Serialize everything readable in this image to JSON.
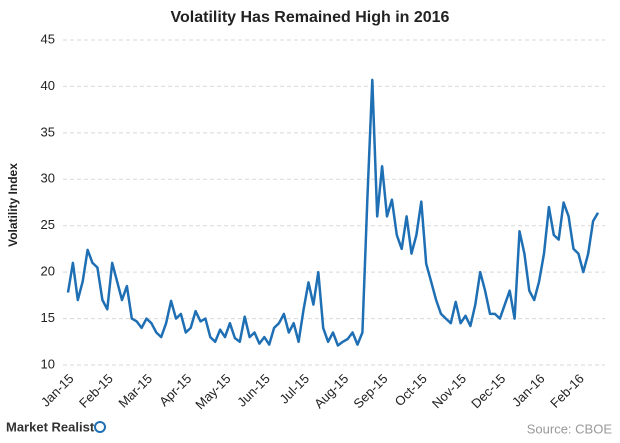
{
  "chart_data": {
    "type": "line",
    "title": "Volatility Has Remained High in 2016",
    "y_label": "Volatility Index",
    "categories": [
      "Jan-15",
      null,
      null,
      null,
      null,
      null,
      null,
      null,
      "Feb-15",
      null,
      null,
      null,
      null,
      null,
      null,
      null,
      "Mar-15",
      null,
      null,
      null,
      null,
      null,
      null,
      null,
      "Apr-15",
      null,
      null,
      null,
      null,
      null,
      null,
      null,
      "May-15",
      null,
      null,
      null,
      null,
      null,
      null,
      null,
      "Jun-15",
      null,
      null,
      null,
      null,
      null,
      null,
      null,
      "Jul-15",
      null,
      null,
      null,
      null,
      null,
      null,
      null,
      "Aug-15",
      null,
      null,
      null,
      null,
      null,
      null,
      null,
      "Sep-15",
      null,
      null,
      null,
      null,
      null,
      null,
      null,
      "Oct-15",
      null,
      null,
      null,
      null,
      null,
      null,
      null,
      "Nov-15",
      null,
      null,
      null,
      null,
      null,
      null,
      null,
      "Dec-15",
      null,
      null,
      null,
      null,
      null,
      null,
      null,
      "Jan-16",
      null,
      null,
      null,
      null,
      null,
      null,
      null,
      "Feb-16",
      null,
      null,
      null,
      null
    ],
    "values": [
      17.8,
      21,
      17,
      19,
      22.4,
      21,
      20.5,
      17,
      16,
      21,
      19,
      17,
      18.5,
      15,
      14.7,
      14,
      15,
      14.5,
      13.5,
      13,
      14.5,
      16.9,
      15,
      15.5,
      13.5,
      14,
      15.8,
      14.7,
      15,
      13,
      12.5,
      13.8,
      13,
      14.5,
      12.9,
      12.5,
      15.2,
      13,
      13.5,
      12.3,
      13,
      12.2,
      14,
      14.5,
      15.5,
      13.5,
      14.5,
      12.5,
      16,
      18.9,
      16.5,
      20,
      14,
      12.5,
      13.5,
      12.1,
      12.5,
      12.8,
      13.5,
      12.2,
      13.5,
      28,
      40.7,
      26,
      31.4,
      26,
      27.8,
      24,
      22.5,
      26,
      22,
      24,
      27.6,
      20.9,
      19,
      17,
      15.5,
      15,
      14.5,
      16.8,
      14.5,
      15.3,
      14.2,
      16.5,
      20,
      18,
      15.5,
      15.5,
      15,
      16.5,
      18,
      15,
      24.4,
      22,
      18,
      17,
      19,
      22,
      27,
      24,
      23.5,
      27.5,
      26,
      22.5,
      22,
      20,
      22,
      25.5,
      26.4
    ],
    "color": "#1f6fb4",
    "ylim": [
      10,
      45
    ],
    "yticks": [
      10,
      15,
      20,
      25,
      30,
      35,
      40,
      45
    ],
    "grid": true
  },
  "footer": {
    "logo": "Market Realist",
    "source": "Source: CBOE"
  }
}
